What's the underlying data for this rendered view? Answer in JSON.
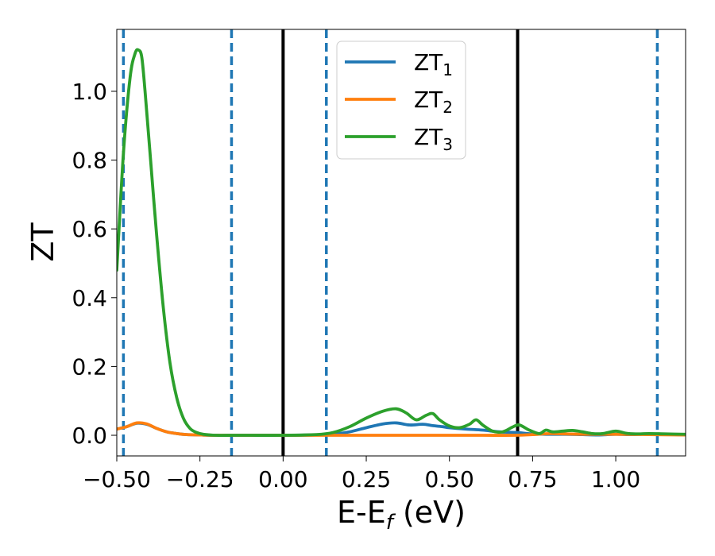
{
  "chart_data": {
    "type": "line",
    "xlabel": "E-E_f (eV)",
    "xlabel_parts": {
      "main": "E-E",
      "sub": "f",
      "unit": " (eV)"
    },
    "ylabel": "ZT",
    "xlim": [
      -0.5,
      1.21
    ],
    "ylim": [
      -0.06,
      1.18
    ],
    "xticks": [
      -0.5,
      -0.25,
      0.0,
      0.25,
      0.5,
      0.75,
      1.0
    ],
    "xtick_labels": [
      "−0.50",
      "−0.25",
      "0.00",
      "0.25",
      "0.50",
      "0.75",
      "1.00"
    ],
    "yticks": [
      0.0,
      0.2,
      0.4,
      0.6,
      0.8,
      1.0
    ],
    "ytick_labels": [
      "0.0",
      "0.2",
      "0.4",
      "0.6",
      "0.8",
      "1.0"
    ],
    "grid": false,
    "legend_position": "upper center",
    "series": [
      {
        "name": "ZT_1",
        "label_main": "ZT",
        "label_sub": "1",
        "color": "#1f77b4",
        "x": [
          -0.5,
          -0.47,
          -0.44,
          -0.41,
          -0.38,
          -0.35,
          -0.32,
          -0.29,
          -0.25,
          -0.2,
          -0.15,
          -0.1,
          0.0,
          0.1,
          0.15,
          0.2,
          0.25,
          0.3,
          0.34,
          0.38,
          0.42,
          0.45,
          0.48,
          0.5,
          0.55,
          0.6,
          0.65,
          0.7,
          0.75,
          0.8,
          0.85,
          0.9,
          0.95,
          1.0,
          1.05,
          1.1,
          1.15,
          1.21
        ],
        "y": [
          0.018,
          0.025,
          0.035,
          0.032,
          0.02,
          0.01,
          0.005,
          0.002,
          0.001,
          0.0,
          0.0,
          0.0,
          0.0,
          0.001,
          0.003,
          0.01,
          0.022,
          0.033,
          0.036,
          0.03,
          0.032,
          0.028,
          0.025,
          0.022,
          0.018,
          0.015,
          0.01,
          0.008,
          0.004,
          0.003,
          0.003,
          0.002,
          0.001,
          0.003,
          0.002,
          0.004,
          0.003,
          0.001
        ]
      },
      {
        "name": "ZT_2",
        "label_main": "ZT",
        "label_sub": "2",
        "color": "#ff7f0e",
        "x": [
          -0.5,
          -0.47,
          -0.44,
          -0.41,
          -0.38,
          -0.35,
          -0.32,
          -0.29,
          -0.25,
          -0.2,
          -0.15,
          -0.1,
          0.0,
          0.1,
          0.2,
          0.3,
          0.4,
          0.5,
          0.6,
          0.7,
          0.75,
          0.8,
          0.85,
          0.9,
          1.0,
          1.1,
          1.21
        ],
        "y": [
          0.018,
          0.025,
          0.036,
          0.033,
          0.02,
          0.01,
          0.005,
          0.002,
          0.001,
          0.0,
          0.0,
          0.0,
          0.0,
          0.0,
          0.0,
          0.0,
          0.0,
          0.0,
          0.0,
          0.0,
          0.002,
          0.005,
          0.004,
          0.003,
          0.003,
          0.002,
          0.001
        ]
      },
      {
        "name": "ZT_3",
        "label_main": "ZT",
        "label_sub": "3",
        "color": "#2ca02c",
        "x": [
          -0.5,
          -0.48,
          -0.46,
          -0.445,
          -0.435,
          -0.425,
          -0.415,
          -0.4,
          -0.38,
          -0.36,
          -0.34,
          -0.32,
          -0.3,
          -0.28,
          -0.26,
          -0.24,
          -0.2,
          -0.15,
          -0.1,
          0.0,
          0.1,
          0.15,
          0.2,
          0.25,
          0.3,
          0.34,
          0.37,
          0.4,
          0.43,
          0.45,
          0.47,
          0.5,
          0.53,
          0.56,
          0.58,
          0.6,
          0.63,
          0.66,
          0.69,
          0.71,
          0.74,
          0.77,
          0.79,
          0.81,
          0.84,
          0.87,
          0.9,
          0.93,
          0.96,
          1.0,
          1.03,
          1.06,
          1.1,
          1.15,
          1.21
        ],
        "y": [
          0.48,
          0.82,
          1.04,
          1.11,
          1.12,
          1.1,
          1.0,
          0.82,
          0.58,
          0.37,
          0.21,
          0.11,
          0.05,
          0.02,
          0.008,
          0.003,
          0.0,
          0.0,
          0.0,
          0.0,
          0.002,
          0.008,
          0.025,
          0.05,
          0.07,
          0.077,
          0.065,
          0.045,
          0.058,
          0.063,
          0.045,
          0.027,
          0.022,
          0.032,
          0.045,
          0.03,
          0.012,
          0.01,
          0.024,
          0.03,
          0.015,
          0.005,
          0.015,
          0.01,
          0.012,
          0.014,
          0.01,
          0.005,
          0.005,
          0.012,
          0.006,
          0.004,
          0.005,
          0.004,
          0.003
        ]
      }
    ],
    "vertical_lines": [
      {
        "x": -0.48,
        "style": "dashed",
        "color": "#1f77b4"
      },
      {
        "x": -0.155,
        "style": "dashed",
        "color": "#1f77b4"
      },
      {
        "x": 0.0,
        "style": "solid",
        "color": "#000000"
      },
      {
        "x": 0.13,
        "style": "dashed",
        "color": "#1f77b4"
      },
      {
        "x": 0.705,
        "style": "solid",
        "color": "#000000"
      },
      {
        "x": 1.125,
        "style": "dashed",
        "color": "#1f77b4"
      }
    ]
  }
}
